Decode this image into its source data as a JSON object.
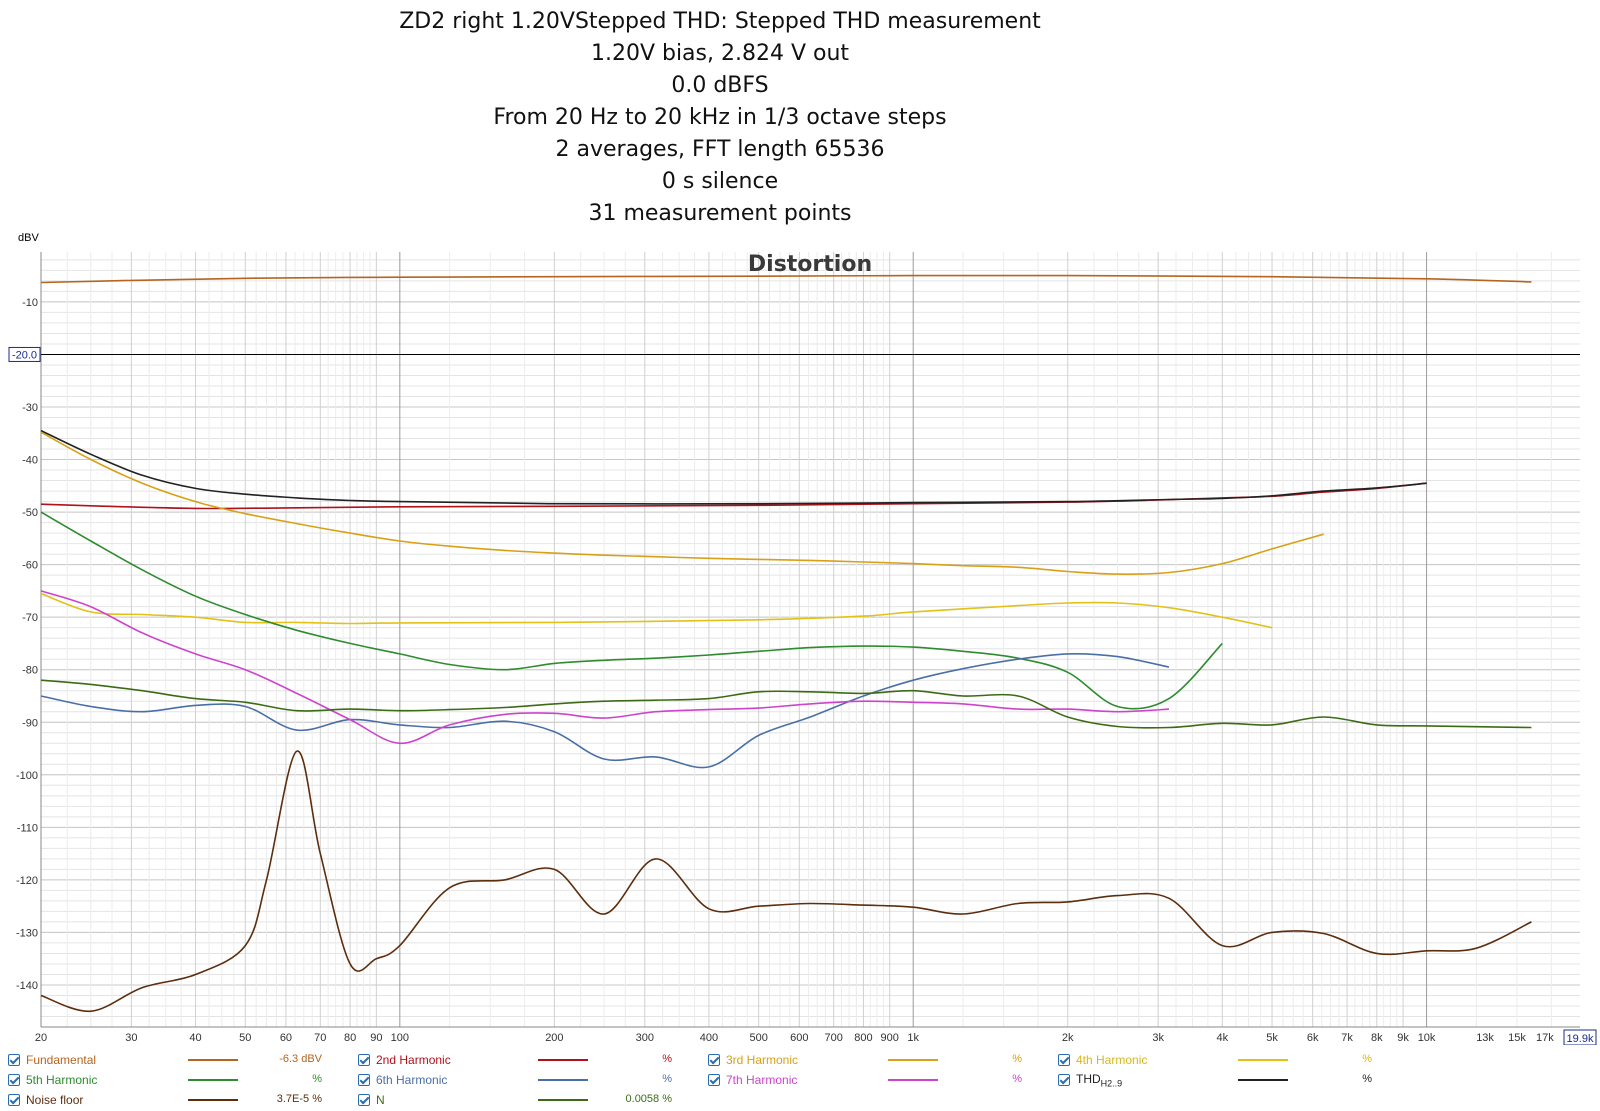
{
  "title_lines": [
    "ZD2 right 1.20VStepped THD: Stepped THD measurement",
    "1.20V bias, 2.824 V out",
    "0.0 dBFS",
    "From 20 Hz to 20 kHz in 1/3 octave steps",
    "2 averages, FFT length 65536",
    "0 s silence",
    "31 measurement points"
  ],
  "chart_data": {
    "type": "line",
    "title": "Distortion",
    "ylabel": "dBV",
    "x_scale": "log",
    "xlim": [
      20,
      19900
    ],
    "ylim": [
      -148,
      -0.5
    ],
    "grid": true,
    "cursor_y": -20.0,
    "cursor_y_label": "-20.0",
    "xmax_label": "19.9k",
    "y_ticks": [
      -10,
      -30,
      -40,
      -50,
      -60,
      -70,
      -80,
      -90,
      -100,
      -110,
      -120,
      -130,
      -140
    ],
    "x_ticks": [
      {
        "v": 20,
        "label": "20"
      },
      {
        "v": 30,
        "label": "30"
      },
      {
        "v": 40,
        "label": "40"
      },
      {
        "v": 50,
        "label": "50"
      },
      {
        "v": 60,
        "label": "60"
      },
      {
        "v": 70,
        "label": "70"
      },
      {
        "v": 80,
        "label": "80"
      },
      {
        "v": 90,
        "label": "90"
      },
      {
        "v": 100,
        "label": "100"
      },
      {
        "v": 200,
        "label": "200"
      },
      {
        "v": 300,
        "label": "300"
      },
      {
        "v": 400,
        "label": "400"
      },
      {
        "v": 500,
        "label": "500"
      },
      {
        "v": 600,
        "label": "600"
      },
      {
        "v": 700,
        "label": "700"
      },
      {
        "v": 800,
        "label": "800"
      },
      {
        "v": 900,
        "label": "900"
      },
      {
        "v": 1000,
        "label": "1k"
      },
      {
        "v": 2000,
        "label": "2k"
      },
      {
        "v": 3000,
        "label": "3k"
      },
      {
        "v": 4000,
        "label": "4k"
      },
      {
        "v": 5000,
        "label": "5k"
      },
      {
        "v": 6000,
        "label": "6k"
      },
      {
        "v": 7000,
        "label": "7k"
      },
      {
        "v": 8000,
        "label": "8k"
      },
      {
        "v": 9000,
        "label": "9k"
      },
      {
        "v": 10000,
        "label": "10k"
      },
      {
        "v": 13000,
        "label": "13k"
      },
      {
        "v": 15000,
        "label": "15k"
      },
      {
        "v": 17000,
        "label": "17k"
      }
    ],
    "series": [
      {
        "name": "Fundamental",
        "color": "#b5651d",
        "x": [
          20,
          30,
          50,
          100,
          200,
          500,
          1000,
          2000,
          5000,
          10000,
          16000
        ],
        "y": [
          -6.3,
          -5.9,
          -5.5,
          -5.3,
          -5.2,
          -5.1,
          -5.0,
          -5.0,
          -5.2,
          -5.6,
          -6.2
        ]
      },
      {
        "name": "2nd Harmonic",
        "color": "#b0121b",
        "x": [
          20,
          25,
          40,
          60,
          100,
          200,
          500,
          1000,
          2000,
          3000,
          4000,
          5000,
          6300,
          8000,
          10000
        ],
        "y": [
          -48.5,
          -48.8,
          -49.3,
          -49.2,
          -49.0,
          -48.9,
          -48.7,
          -48.4,
          -48.1,
          -47.7,
          -47.3,
          -47.0,
          -46.2,
          -45.5,
          -44.5
        ]
      },
      {
        "name": "THD",
        "color": "#222222",
        "x": [
          20,
          25,
          31.5,
          40,
          50,
          63,
          80,
          100,
          200,
          500,
          1000,
          2000,
          3150,
          4000,
          5000,
          6300,
          8000,
          10000
        ],
        "y": [
          -34.5,
          -39.0,
          -43.0,
          -45.5,
          -46.6,
          -47.3,
          -47.8,
          -48.0,
          -48.4,
          -48.4,
          -48.2,
          -48.0,
          -47.6,
          -47.4,
          -46.9,
          -46.0,
          -45.4,
          -44.5
        ]
      },
      {
        "name": "3rd Harmonic",
        "color": "#d8a016",
        "x": [
          20,
          25,
          31.5,
          40,
          50,
          63,
          80,
          100,
          125,
          160,
          200,
          250,
          315,
          400,
          500,
          630,
          800,
          1000,
          1250,
          1600,
          2000,
          2500,
          3150,
          4000,
          5000,
          6300
        ],
        "y": [
          -34.8,
          -40.0,
          -44.5,
          -48.0,
          -50.3,
          -52.2,
          -54.0,
          -55.5,
          -56.5,
          -57.3,
          -57.8,
          -58.2,
          -58.5,
          -58.8,
          -59.0,
          -59.2,
          -59.5,
          -59.8,
          -60.2,
          -60.5,
          -61.3,
          -61.8,
          -61.5,
          -59.8,
          -57.0,
          -54.2
        ]
      },
      {
        "name": "4th Harmonic",
        "color": "#e2c218",
        "x": [
          20,
          25,
          31.5,
          40,
          50,
          63,
          80,
          100,
          200,
          500,
          800,
          1000,
          1600,
          2000,
          2500,
          3150,
          4000,
          5000
        ],
        "y": [
          -65.5,
          -69.0,
          -69.5,
          -70.0,
          -71.0,
          -71.0,
          -71.2,
          -71.1,
          -71.0,
          -70.5,
          -69.8,
          -69.0,
          -67.8,
          -67.3,
          -67.3,
          -68.2,
          -70.0,
          -72.0
        ]
      },
      {
        "name": "5th Harmonic",
        "color": "#2e8b2e",
        "x": [
          20,
          25,
          31.5,
          40,
          50,
          63,
          80,
          100,
          125,
          160,
          200,
          250,
          315,
          400,
          500,
          630,
          800,
          1000,
          1250,
          1600,
          2000,
          2500,
          3150,
          4000
        ],
        "y": [
          -50.0,
          -55.5,
          -61.0,
          -66.0,
          -69.5,
          -72.5,
          -75.0,
          -77.0,
          -79.0,
          -80.0,
          -78.8,
          -78.2,
          -77.8,
          -77.2,
          -76.5,
          -75.8,
          -75.5,
          -75.7,
          -76.5,
          -77.8,
          -80.5,
          -87.0,
          -85.5,
          -75.0
        ]
      },
      {
        "name": "6th Harmonic",
        "color": "#4a6fa5",
        "x": [
          20,
          25,
          31.5,
          40,
          50,
          63,
          80,
          100,
          125,
          160,
          200,
          250,
          315,
          400,
          500,
          630,
          800,
          1000,
          1250,
          1600,
          2000,
          2500,
          3150
        ],
        "y": [
          -85.0,
          -87.0,
          -88.0,
          -86.8,
          -87.0,
          -91.5,
          -89.5,
          -90.5,
          -91.0,
          -89.8,
          -91.8,
          -97.0,
          -96.6,
          -98.5,
          -92.5,
          -89.0,
          -85.0,
          -82.0,
          -79.8,
          -78.0,
          -77.0,
          -77.5,
          -79.5
        ]
      },
      {
        "name": "7th Harmonic",
        "color": "#cc44cc",
        "x": [
          20,
          25,
          31.5,
          40,
          50,
          63,
          80,
          100,
          125,
          160,
          200,
          250,
          315,
          400,
          500,
          630,
          800,
          1000,
          1250,
          1600,
          2000,
          2500,
          3150
        ],
        "y": [
          -65.0,
          -68.0,
          -73.0,
          -77.0,
          -80.0,
          -84.5,
          -89.5,
          -94.0,
          -90.5,
          -88.5,
          -88.3,
          -89.2,
          -88.0,
          -87.6,
          -87.3,
          -86.5,
          -86.0,
          -86.2,
          -86.5,
          -87.5,
          -87.5,
          -88.0,
          -87.5
        ]
      },
      {
        "name": "N",
        "color": "#3d6b15",
        "x": [
          20,
          25,
          31.5,
          40,
          50,
          63,
          80,
          100,
          125,
          160,
          200,
          250,
          315,
          400,
          500,
          630,
          800,
          1000,
          1250,
          1600,
          2000,
          2500,
          3150,
          4000,
          5000,
          6300,
          8000,
          10000,
          16000
        ],
        "y": [
          -82.0,
          -82.8,
          -84.0,
          -85.5,
          -86.2,
          -87.8,
          -87.5,
          -87.8,
          -87.6,
          -87.2,
          -86.5,
          -86.0,
          -85.8,
          -85.5,
          -84.2,
          -84.2,
          -84.5,
          -84.0,
          -85.0,
          -85.0,
          -89.0,
          -90.8,
          -91.0,
          -90.2,
          -90.5,
          -89.0,
          -90.5,
          -90.7,
          -91.0
        ]
      },
      {
        "name": "Noise floor",
        "color": "#5c2e0e",
        "x": [
          20,
          25,
          31.5,
          40,
          50,
          55,
          63,
          70,
          80,
          90,
          100,
          125,
          160,
          200,
          250,
          315,
          400,
          500,
          630,
          800,
          1000,
          1250,
          1600,
          2000,
          2500,
          3150,
          4000,
          5000,
          6300,
          8000,
          10000,
          12500,
          16000
        ],
        "y": [
          -142.0,
          -145.0,
          -140.5,
          -138.0,
          -132.5,
          -120.0,
          -95.5,
          -115.0,
          -136.0,
          -135.0,
          -132.5,
          -121.5,
          -120.0,
          -118.0,
          -126.5,
          -116.0,
          -125.5,
          -125.0,
          -124.5,
          -124.8,
          -125.2,
          -126.5,
          -124.5,
          -124.2,
          -123.0,
          -123.5,
          -132.5,
          -130.0,
          -130.2,
          -134.0,
          -133.5,
          -133.0,
          -128.0
        ]
      }
    ]
  },
  "legend": [
    {
      "label": "Fundamental",
      "value": "-6.3 dBV",
      "color": "#b5651d",
      "text_color": "#b5651d"
    },
    {
      "label": "2nd Harmonic",
      "value": "%",
      "color": "#b0121b",
      "text_color": "#b0121b"
    },
    {
      "label": "3rd Harmonic",
      "value": "%",
      "color": "#d8a016",
      "text_color": "#d8a016"
    },
    {
      "label": "4th Harmonic",
      "value": "%",
      "color": "#e2c218",
      "text_color": "#d8b818"
    },
    {
      "label": "5th Harmonic",
      "value": "%",
      "color": "#2e8b2e",
      "text_color": "#2e8b2e"
    },
    {
      "label": "6th Harmonic",
      "value": "%",
      "color": "#4a6fa5",
      "text_color": "#4a6fa5"
    },
    {
      "label": "7th Harmonic",
      "value": "%",
      "color": "#cc44cc",
      "text_color": "#cc44cc"
    },
    {
      "label": "THD",
      "sub": "H2..9",
      "value": "%",
      "color": "#222222",
      "text_color": "#222222"
    },
    {
      "label": "Noise floor",
      "value": "3.7E-5 %",
      "color": "#5c2e0e",
      "text_color": "#5c2e0e"
    },
    {
      "label": "N",
      "value": "0.0058 %",
      "color": "#3d6b15",
      "text_color": "#3d6b15"
    }
  ]
}
